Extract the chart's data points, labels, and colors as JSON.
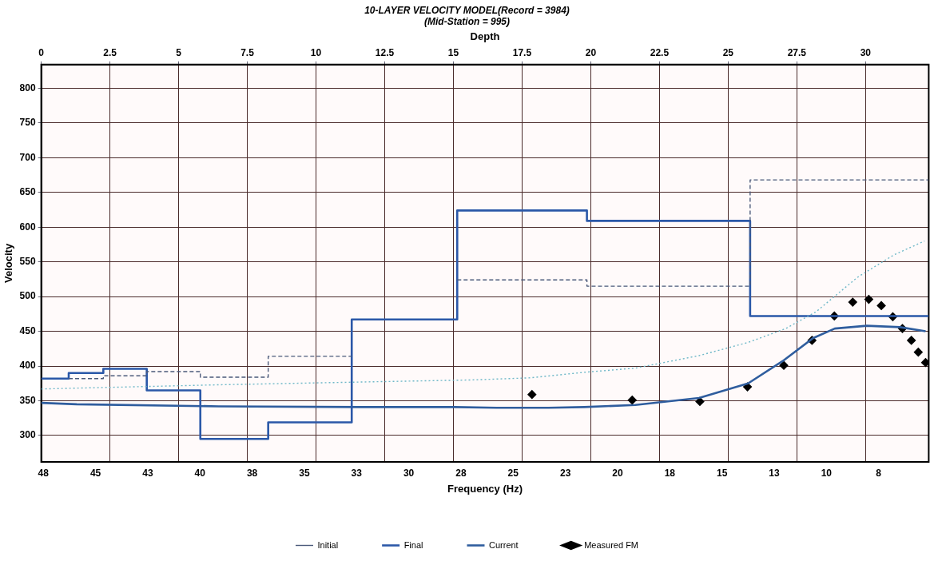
{
  "chart_data": {
    "type": "line",
    "title": "10-LAYER VELOCITY MODEL(Record = 3984)",
    "subtitle": "(Mid-Station = 995)",
    "xlabel": "Frequency (Hz)",
    "x2label": "Depth",
    "ylabel": "Velocity",
    "xlim": [
      48.1,
      5.6
    ],
    "xticks": [
      48,
      {
        "value": 45.5,
        "label": "45"
      },
      43,
      {
        "value": 40.5,
        "label": "40"
      },
      38,
      {
        "value": 35.5,
        "label": "35"
      },
      33,
      {
        "value": 30.5,
        "label": "30"
      },
      28,
      {
        "value": 25.5,
        "label": "25"
      },
      23,
      {
        "value": 20.5,
        "label": "20"
      },
      18,
      {
        "value": 15.5,
        "label": "15"
      },
      13,
      {
        "value": 10.5,
        "label": "10"
      },
      8
    ],
    "x2lim": [
      0,
      32.3
    ],
    "x2ticks": [
      0,
      2.5,
      5,
      7.5,
      10,
      12.5,
      15,
      17.5,
      20,
      22.5,
      25,
      27.5,
      30
    ],
    "ylim": [
      262,
      834
    ],
    "yticks": [
      300,
      350,
      400,
      450,
      500,
      550,
      600,
      650,
      700,
      750,
      800
    ],
    "grid": true,
    "legend": "bottom",
    "series": [
      {
        "name": "Initial",
        "type": "step",
        "axis": "x2",
        "color": "#4b5a7a",
        "line_style": "dashed",
        "x": [
          1,
          2.26,
          3.84,
          5.79,
          8.26,
          11.3,
          15.14,
          19.86,
          25.8,
          32.3
        ],
        "values": [
          382,
          386,
          392,
          384,
          414,
          null,
          524,
          515,
          668,
          668
        ]
      },
      {
        "type": "line",
        "color": "#6fb8c8",
        "line_style": "dotted",
        "x": [
          48.1,
          39.6,
          32.8,
          27.5,
          24.7,
          22.1,
          19.65,
          16.6,
          14.25,
          12.45,
          11.0,
          9.0,
          7.27,
          5.8
        ],
        "values": [
          367,
          373,
          377,
          380,
          383,
          391,
          397,
          415,
          434,
          454,
          478,
          528,
          560,
          580
        ]
      },
      {
        "name": "Final",
        "type": "step",
        "axis": "x2",
        "color": "#2b58a8",
        "line_style": "solid",
        "x": [
          0,
          1,
          2.26,
          3.84,
          5.79,
          8.26,
          11.3,
          15.14,
          19.86,
          25.8,
          32.3
        ],
        "values": [
          382,
          390,
          396,
          365,
          295,
          319,
          467,
          624,
          609,
          472,
          472
        ]
      },
      {
        "name": "Current",
        "type": "line",
        "color": "#2f5d9e",
        "line_style": "solid",
        "x": [
          48.1,
          46.4,
          39.6,
          32.8,
          28.3,
          26.3,
          23.8,
          22.1,
          19.65,
          16.6,
          14.25,
          12.6,
          11.15,
          10.1,
          8.57,
          6.98,
          5.75
        ],
        "values": [
          347,
          345,
          342,
          341,
          341,
          340,
          340,
          341,
          344,
          354,
          375,
          407,
          440,
          454,
          458,
          456,
          450
        ]
      },
      {
        "name": "Measured FM",
        "type": "scatter",
        "color": "#000000",
        "marker": "diamond",
        "x": [
          24.6,
          19.8,
          16.56,
          14.28,
          12.54,
          11.19,
          10.12,
          9.24,
          8.47,
          7.87,
          7.32,
          6.86,
          6.43,
          6.1,
          5.75
        ],
        "values": [
          359,
          351,
          349,
          370,
          401,
          437,
          472,
          492,
          496,
          487,
          471,
          454,
          437,
          420,
          405
        ]
      }
    ]
  }
}
